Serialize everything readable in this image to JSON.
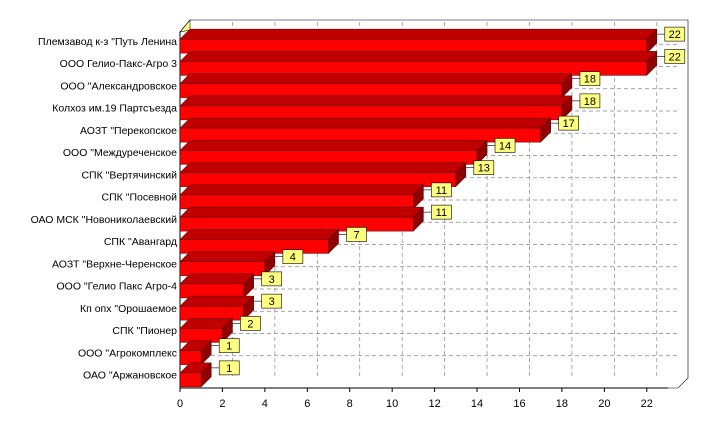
{
  "chart_data": {
    "type": "bar3d-horizontal",
    "categories": [
      "Племзавод к-з \"Путь Ленина",
      "ООО Гелио-Пакс-Агро 3",
      "ООО \"Александровское",
      "Колхоз им.19 Партсъезда",
      "АОЗТ \"Перекопское",
      "ООО \"Междуреченское",
      "СПК \"Вертячинский",
      "СПК \"Посевной",
      "ОАО МСК \"Новониколаевский",
      "СПК \"Авангард",
      "АОЗТ \"Верхне-Черенское",
      "ООО \"Гелио Пакс Агро-4",
      "Кп опх \"Орошаемое",
      "СПК \"Пионер",
      "ООО \"Агрокомплекс",
      "ОАО \"Аржановское"
    ],
    "values": [
      22,
      22,
      18,
      18,
      17,
      14,
      13,
      11,
      11,
      7,
      4,
      3,
      3,
      2,
      1,
      1
    ],
    "color": "#ff0000",
    "xlim": [
      0,
      23
    ],
    "xticks": [
      0,
      2,
      4,
      6,
      8,
      10,
      12,
      14,
      16,
      18,
      20,
      22
    ],
    "grid": true
  }
}
